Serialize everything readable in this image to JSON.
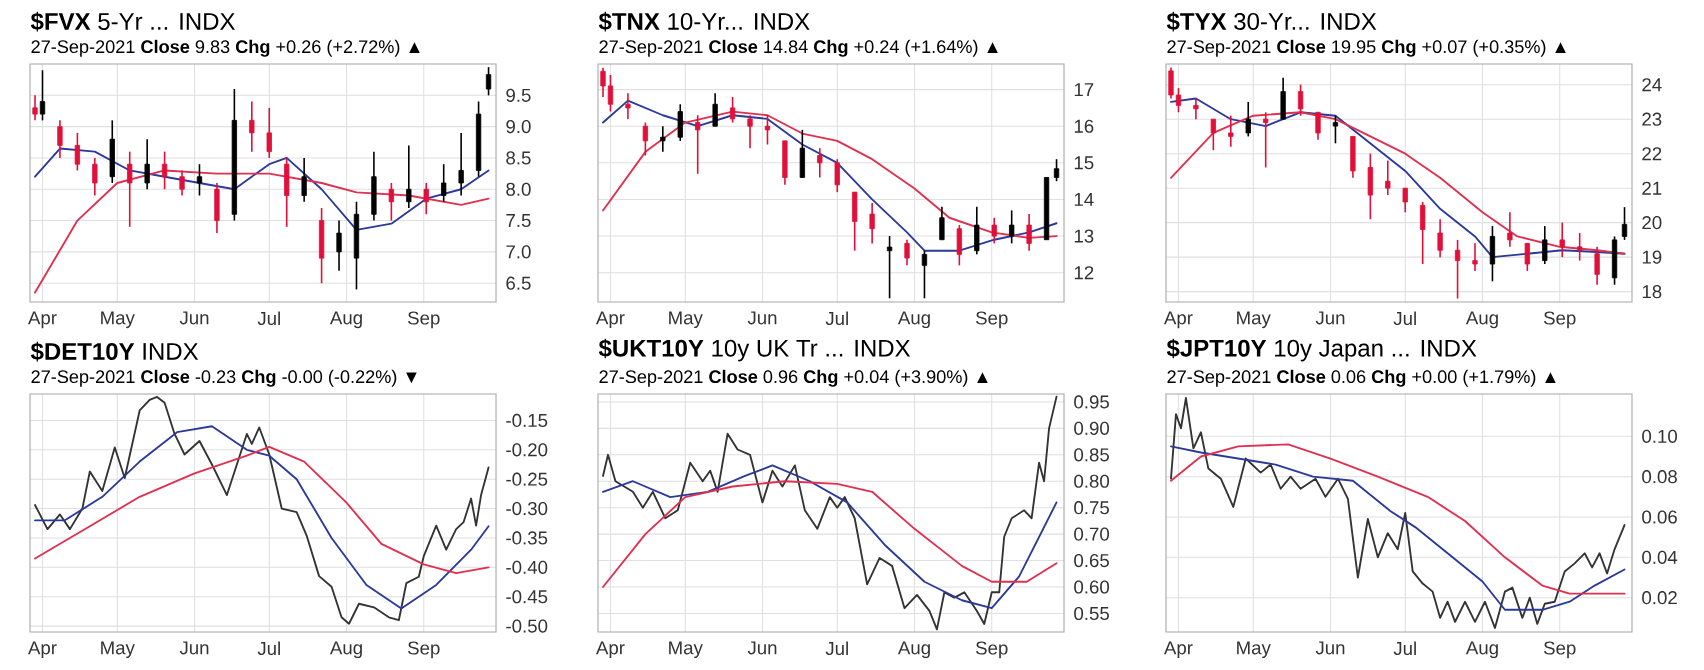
{
  "chart_data": [
    {
      "type": "candlestick",
      "title": "**$FVX** 5-Yr ... INDX",
      "subtitle": "27-Sep-2021 **Close** 9.83 **Chg** +0.26 (+2.72%) ▲",
      "grid": true,
      "xlim": [
        "2021-03-27",
        "2021-09-30"
      ],
      "ylim": [
        6.2,
        10.0
      ],
      "xticks": [
        {
          "value": "2021-04-01",
          "label": "Apr"
        },
        {
          "value": "2021-05-01",
          "label": "May"
        },
        {
          "value": "2021-06-01",
          "label": "Jun"
        },
        {
          "value": "2021-07-01",
          "label": "Jul"
        },
        {
          "value": "2021-08-01",
          "label": "Aug"
        },
        {
          "value": "2021-09-01",
          "label": "Sep"
        }
      ],
      "yticks": [
        6.5,
        {
          "value": 7,
          "label": "7.0"
        },
        7.5,
        {
          "value": 8,
          "label": "8.0"
        },
        8.5,
        {
          "value": 9,
          "label": "9.0"
        },
        9.5
      ],
      "x": [
        "2021-03-29",
        "2021-04-01",
        "2021-04-08",
        "2021-04-15",
        "2021-04-22",
        "2021-04-29",
        "2021-05-06",
        "2021-05-13",
        "2021-05-20",
        "2021-05-27",
        "2021-06-03",
        "2021-06-10",
        "2021-06-17",
        "2021-06-24",
        "2021-07-01",
        "2021-07-08",
        "2021-07-15",
        "2021-07-22",
        "2021-07-29",
        "2021-08-05",
        "2021-08-12",
        "2021-08-19",
        "2021-08-26",
        "2021-09-02",
        "2021-09-09",
        "2021-09-16",
        "2021-09-23",
        "2021-09-27"
      ],
      "ohlc": [
        [
          9.3,
          9.5,
          9.1,
          9.2
        ],
        [
          9.2,
          9.9,
          9.1,
          9.4
        ],
        [
          9.0,
          9.1,
          8.5,
          8.7
        ],
        [
          8.7,
          8.9,
          8.3,
          8.4
        ],
        [
          8.4,
          8.5,
          7.9,
          8.1
        ],
        [
          8.2,
          9.1,
          8.1,
          8.8
        ],
        [
          8.4,
          8.6,
          7.4,
          8.1
        ],
        [
          8.1,
          8.8,
          8.0,
          8.4
        ],
        [
          8.4,
          8.6,
          8.0,
          8.2
        ],
        [
          8.2,
          8.3,
          7.9,
          8.0
        ],
        [
          8.1,
          8.4,
          7.9,
          8.2
        ],
        [
          8.0,
          8.1,
          7.3,
          7.5
        ],
        [
          7.6,
          9.6,
          7.5,
          9.1
        ],
        [
          9.1,
          9.4,
          8.6,
          8.9
        ],
        [
          8.9,
          9.3,
          8.5,
          8.6
        ],
        [
          8.4,
          8.5,
          7.4,
          7.9
        ],
        [
          7.9,
          8.5,
          7.8,
          8.2
        ],
        [
          7.5,
          7.7,
          6.5,
          6.9
        ],
        [
          7.0,
          7.5,
          6.7,
          7.3
        ],
        [
          6.9,
          7.8,
          6.4,
          7.6
        ],
        [
          7.6,
          8.6,
          7.5,
          8.2
        ],
        [
          8.0,
          8.1,
          7.5,
          7.8
        ],
        [
          7.8,
          8.7,
          7.7,
          8.0
        ],
        [
          8.0,
          8.1,
          7.6,
          7.8
        ],
        [
          7.9,
          8.4,
          7.8,
          8.1
        ],
        [
          8.1,
          8.9,
          7.9,
          8.3
        ],
        [
          8.3,
          9.4,
          8.2,
          9.2
        ],
        [
          9.6,
          9.95,
          9.5,
          9.83
        ]
      ],
      "colors": [
        "#e0103a",
        "#000000",
        "#e0103a",
        "#e0103a",
        "#e0103a",
        "#000000",
        "#e0103a",
        "#000000",
        "#e0103a",
        "#e0103a",
        "#000000",
        "#e0103a",
        "#000000",
        "#e0103a",
        "#e0103a",
        "#e0103a",
        "#000000",
        "#e0103a",
        "#000000",
        "#000000",
        "#000000",
        "#e0103a",
        "#000000",
        "#e0103a",
        "#000000",
        "#000000",
        "#000000",
        "#000000"
      ],
      "series": [
        {
          "type": "line",
          "color": "#2b3a9a",
          "x": [
            "2021-03-29",
            "2021-04-08",
            "2021-04-22",
            "2021-05-06",
            "2021-05-20",
            "2021-06-03",
            "2021-06-17",
            "2021-07-01",
            "2021-07-08",
            "2021-07-22",
            "2021-08-05",
            "2021-08-19",
            "2021-09-02",
            "2021-09-16",
            "2021-09-27"
          ],
          "values": [
            8.2,
            8.65,
            8.6,
            8.3,
            8.2,
            8.1,
            8.0,
            8.4,
            8.5,
            8.0,
            7.35,
            7.45,
            7.85,
            8.0,
            8.3
          ]
        },
        {
          "type": "line",
          "color": "#e0304f",
          "x": [
            "2021-03-29",
            "2021-04-15",
            "2021-05-01",
            "2021-05-20",
            "2021-06-10",
            "2021-07-01",
            "2021-07-22",
            "2021-08-05",
            "2021-08-26",
            "2021-09-16",
            "2021-09-27"
          ],
          "values": [
            6.35,
            7.5,
            8.1,
            8.3,
            8.25,
            8.25,
            8.1,
            7.95,
            7.9,
            7.75,
            7.85
          ]
        }
      ]
    },
    {
      "type": "candlestick",
      "title": "**$TNX** 10-Yr... INDX",
      "subtitle": "27-Sep-2021 **Close** 14.84 **Chg** +0.24 (+1.64%) ▲",
      "grid": true,
      "xlim": [
        "2021-03-27",
        "2021-09-30"
      ],
      "ylim": [
        11.2,
        17.7
      ],
      "xticks": [
        {
          "value": "2021-04-01",
          "label": "Apr"
        },
        {
          "value": "2021-05-01",
          "label": "May"
        },
        {
          "value": "2021-06-01",
          "label": "Jun"
        },
        {
          "value": "2021-07-01",
          "label": "Jul"
        },
        {
          "value": "2021-08-01",
          "label": "Aug"
        },
        {
          "value": "2021-09-01",
          "label": "Sep"
        }
      ],
      "yticks": [
        12,
        13,
        14,
        15,
        16,
        17
      ],
      "x": [
        "2021-03-29",
        "2021-04-01",
        "2021-04-08",
        "2021-04-15",
        "2021-04-22",
        "2021-04-29",
        "2021-05-06",
        "2021-05-13",
        "2021-05-20",
        "2021-05-27",
        "2021-06-03",
        "2021-06-10",
        "2021-06-17",
        "2021-06-24",
        "2021-07-01",
        "2021-07-08",
        "2021-07-15",
        "2021-07-22",
        "2021-07-29",
        "2021-08-05",
        "2021-08-12",
        "2021-08-19",
        "2021-08-26",
        "2021-09-02",
        "2021-09-09",
        "2021-09-16",
        "2021-09-23",
        "2021-09-27"
      ],
      "ohlc": [
        [
          17.5,
          17.6,
          16.8,
          17.1
        ],
        [
          17.1,
          17.4,
          16.4,
          16.6
        ],
        [
          16.6,
          16.9,
          16.2,
          16.5
        ],
        [
          16.0,
          16.1,
          15.2,
          15.6
        ],
        [
          15.6,
          16.0,
          15.3,
          15.7
        ],
        [
          15.7,
          16.6,
          15.6,
          16.4
        ],
        [
          16.1,
          16.3,
          14.7,
          15.9
        ],
        [
          16.0,
          16.9,
          16.0,
          16.6
        ],
        [
          16.5,
          16.8,
          16.1,
          16.2
        ],
        [
          16.2,
          16.3,
          15.4,
          16.0
        ],
        [
          16.0,
          16.3,
          15.5,
          15.9
        ],
        [
          15.6,
          15.6,
          14.4,
          14.6
        ],
        [
          14.6,
          15.9,
          14.6,
          15.4
        ],
        [
          15.2,
          15.4,
          14.6,
          15.0
        ],
        [
          15.0,
          15.1,
          14.2,
          14.4
        ],
        [
          14.2,
          14.2,
          12.6,
          13.4
        ],
        [
          13.6,
          13.9,
          12.8,
          13.2
        ],
        [
          12.6,
          13.0,
          11.3,
          12.7
        ],
        [
          12.8,
          12.9,
          12.2,
          12.4
        ],
        [
          12.2,
          12.6,
          11.3,
          12.5
        ],
        [
          12.9,
          13.8,
          12.9,
          13.5
        ],
        [
          13.2,
          13.3,
          12.2,
          12.5
        ],
        [
          12.6,
          13.8,
          12.5,
          13.3
        ],
        [
          13.3,
          13.5,
          12.8,
          13.0
        ],
        [
          13.0,
          13.7,
          12.8,
          13.3
        ],
        [
          13.3,
          13.6,
          12.6,
          12.8
        ],
        [
          12.9,
          14.6,
          12.9,
          14.6
        ],
        [
          14.6,
          15.1,
          14.5,
          14.84
        ]
      ],
      "colors": [
        "#e0103a",
        "#e0103a",
        "#e0103a",
        "#e0103a",
        "#000000",
        "#000000",
        "#e0103a",
        "#000000",
        "#e0103a",
        "#e0103a",
        "#e0103a",
        "#e0103a",
        "#000000",
        "#e0103a",
        "#e0103a",
        "#e0103a",
        "#e0103a",
        "#000000",
        "#e0103a",
        "#000000",
        "#000000",
        "#e0103a",
        "#000000",
        "#e0103a",
        "#000000",
        "#e0103a",
        "#000000",
        "#000000"
      ],
      "series": [
        {
          "type": "line",
          "color": "#2b3a9a",
          "x": [
            "2021-03-29",
            "2021-04-08",
            "2021-04-22",
            "2021-05-06",
            "2021-05-20",
            "2021-06-03",
            "2021-06-17",
            "2021-07-01",
            "2021-07-15",
            "2021-07-29",
            "2021-08-05",
            "2021-08-19",
            "2021-09-02",
            "2021-09-16",
            "2021-09-27"
          ],
          "values": [
            16.1,
            16.7,
            16.3,
            16.0,
            16.3,
            16.2,
            15.5,
            15.0,
            14.0,
            13.1,
            12.6,
            12.6,
            12.9,
            13.1,
            13.35
          ]
        },
        {
          "type": "line",
          "color": "#e0304f",
          "x": [
            "2021-03-29",
            "2021-04-15",
            "2021-05-01",
            "2021-05-20",
            "2021-06-03",
            "2021-06-17",
            "2021-07-01",
            "2021-07-15",
            "2021-08-01",
            "2021-08-15",
            "2021-09-01",
            "2021-09-16",
            "2021-09-27"
          ],
          "values": [
            13.7,
            15.3,
            16.1,
            16.4,
            16.3,
            15.8,
            15.6,
            15.1,
            14.3,
            13.5,
            13.1,
            12.95,
            13.0
          ]
        }
      ]
    },
    {
      "type": "candlestick",
      "title": "**$TYX** 30-Yr... INDX",
      "subtitle": "27-Sep-2021 **Close** 19.95 **Chg** +0.07 (+0.35%) ▲",
      "grid": true,
      "xlim": [
        "2021-03-27",
        "2021-09-30"
      ],
      "ylim": [
        17.7,
        24.6
      ],
      "xticks": [
        {
          "value": "2021-04-01",
          "label": "Apr"
        },
        {
          "value": "2021-05-01",
          "label": "May"
        },
        {
          "value": "2021-06-01",
          "label": "Jun"
        },
        {
          "value": "2021-07-01",
          "label": "Jul"
        },
        {
          "value": "2021-08-01",
          "label": "Aug"
        },
        {
          "value": "2021-09-01",
          "label": "Sep"
        }
      ],
      "yticks": [
        18,
        19,
        20,
        21,
        22,
        23,
        24
      ],
      "x": [
        "2021-03-29",
        "2021-04-01",
        "2021-04-08",
        "2021-04-15",
        "2021-04-22",
        "2021-04-29",
        "2021-05-06",
        "2021-05-13",
        "2021-05-20",
        "2021-05-27",
        "2021-06-03",
        "2021-06-10",
        "2021-06-17",
        "2021-06-24",
        "2021-07-01",
        "2021-07-08",
        "2021-07-15",
        "2021-07-22",
        "2021-07-29",
        "2021-08-05",
        "2021-08-12",
        "2021-08-19",
        "2021-08-26",
        "2021-09-02",
        "2021-09-09",
        "2021-09-16",
        "2021-09-23",
        "2021-09-27"
      ],
      "ohlc": [
        [
          24.4,
          24.5,
          23.6,
          23.7
        ],
        [
          23.7,
          23.9,
          23.2,
          23.4
        ],
        [
          23.4,
          23.6,
          23.0,
          23.3
        ],
        [
          23.0,
          23.0,
          22.1,
          22.6
        ],
        [
          22.6,
          23.1,
          22.2,
          22.5
        ],
        [
          22.6,
          23.5,
          22.5,
          23.0
        ],
        [
          23.0,
          23.2,
          21.6,
          22.9
        ],
        [
          23.0,
          24.2,
          23.0,
          23.8
        ],
        [
          23.8,
          24.0,
          23.1,
          23.3
        ],
        [
          23.2,
          23.2,
          22.4,
          22.6
        ],
        [
          22.8,
          23.1,
          22.3,
          22.9
        ],
        [
          22.5,
          22.5,
          21.3,
          21.5
        ],
        [
          21.6,
          22.0,
          20.1,
          20.8
        ],
        [
          21.2,
          21.8,
          20.8,
          21.0
        ],
        [
          21.0,
          21.0,
          20.3,
          20.6
        ],
        [
          20.5,
          20.6,
          18.8,
          19.8
        ],
        [
          19.7,
          20.1,
          19.0,
          19.2
        ],
        [
          19.2,
          19.5,
          17.8,
          18.9
        ],
        [
          18.9,
          19.4,
          18.6,
          18.8
        ],
        [
          18.8,
          19.9,
          18.3,
          19.6
        ],
        [
          19.7,
          20.3,
          19.3,
          19.5
        ],
        [
          19.4,
          19.4,
          18.6,
          18.8
        ],
        [
          18.9,
          19.9,
          18.8,
          19.5
        ],
        [
          19.5,
          20.0,
          19.0,
          19.3
        ],
        [
          19.3,
          19.7,
          18.9,
          19.2
        ],
        [
          19.1,
          19.3,
          18.2,
          18.5
        ],
        [
          18.4,
          19.6,
          18.2,
          19.5
        ],
        [
          19.6,
          20.45,
          19.5,
          19.95
        ]
      ],
      "colors": [
        "#e0103a",
        "#e0103a",
        "#e0103a",
        "#e0103a",
        "#e0103a",
        "#000000",
        "#e0103a",
        "#000000",
        "#e0103a",
        "#e0103a",
        "#000000",
        "#e0103a",
        "#e0103a",
        "#e0103a",
        "#e0103a",
        "#e0103a",
        "#e0103a",
        "#e0103a",
        "#e0103a",
        "#000000",
        "#e0103a",
        "#e0103a",
        "#000000",
        "#e0103a",
        "#e0103a",
        "#e0103a",
        "#000000",
        "#000000"
      ],
      "series": [
        {
          "type": "line",
          "color": "#2b3a9a",
          "x": [
            "2021-03-29",
            "2021-04-08",
            "2021-04-22",
            "2021-05-06",
            "2021-05-20",
            "2021-06-03",
            "2021-06-17",
            "2021-07-01",
            "2021-07-15",
            "2021-07-29",
            "2021-08-05",
            "2021-08-19",
            "2021-09-02",
            "2021-09-16",
            "2021-09-27"
          ],
          "values": [
            23.5,
            23.6,
            23.0,
            22.8,
            23.2,
            23.1,
            22.3,
            21.5,
            20.4,
            19.6,
            19.0,
            19.1,
            19.2,
            19.15,
            19.1
          ]
        },
        {
          "type": "line",
          "color": "#e0304f",
          "x": [
            "2021-03-29",
            "2021-04-15",
            "2021-05-01",
            "2021-05-20",
            "2021-06-03",
            "2021-06-17",
            "2021-07-01",
            "2021-07-15",
            "2021-08-01",
            "2021-08-15",
            "2021-09-01",
            "2021-09-16",
            "2021-09-27"
          ],
          "values": [
            21.3,
            22.6,
            23.1,
            23.2,
            23.0,
            22.5,
            22.0,
            21.3,
            20.3,
            19.6,
            19.3,
            19.2,
            19.1
          ]
        }
      ]
    },
    {
      "type": "line",
      "title": "**$DET10Y** INDX",
      "subtitle": "27-Sep-2021 **Close** -0.23 **Chg** -0.00 (-0.22%) ▼",
      "grid": true,
      "xlim": [
        "2021-03-27",
        "2021-09-30"
      ],
      "ylim": [
        -0.51,
        -0.105
      ],
      "xticks": [
        {
          "value": "2021-04-01",
          "label": "Apr"
        },
        {
          "value": "2021-05-01",
          "label": "May"
        },
        {
          "value": "2021-06-01",
          "label": "Jun"
        },
        {
          "value": "2021-07-01",
          "label": "Jul"
        },
        {
          "value": "2021-08-01",
          "label": "Aug"
        },
        {
          "value": "2021-09-01",
          "label": "Sep"
        }
      ],
      "yticks": [
        {
          "value": -0.5,
          "label": "-0.50"
        },
        -0.45,
        {
          "value": -0.4,
          "label": "-0.40"
        },
        -0.35,
        {
          "value": -0.3,
          "label": "-0.30"
        },
        -0.25,
        {
          "value": -0.2,
          "label": "-0.20"
        },
        -0.15
      ],
      "series": [
        {
          "type": "line",
          "color": "#333333",
          "x": [
            "2021-03-29",
            "2021-04-03",
            "2021-04-08",
            "2021-04-12",
            "2021-04-17",
            "2021-04-20",
            "2021-04-25",
            "2021-04-30",
            "2021-05-04",
            "2021-05-10",
            "2021-05-14",
            "2021-05-17",
            "2021-05-20",
            "2021-05-24",
            "2021-05-28",
            "2021-06-03",
            "2021-06-08",
            "2021-06-14",
            "2021-06-18",
            "2021-06-22",
            "2021-06-24",
            "2021-06-27",
            "2021-07-01",
            "2021-07-06",
            "2021-07-12",
            "2021-07-16",
            "2021-07-21",
            "2021-07-26",
            "2021-07-30",
            "2021-08-02",
            "2021-08-06",
            "2021-08-12",
            "2021-08-18",
            "2021-08-22",
            "2021-08-25",
            "2021-08-30",
            "2021-09-01",
            "2021-09-06",
            "2021-09-10",
            "2021-09-14",
            "2021-09-17",
            "2021-09-20",
            "2021-09-22",
            "2021-09-24",
            "2021-09-27"
          ],
          "values": [
            -0.294,
            -0.335,
            -0.31,
            -0.335,
            -0.3,
            -0.237,
            -0.27,
            -0.196,
            -0.248,
            -0.133,
            -0.115,
            -0.11,
            -0.12,
            -0.173,
            -0.208,
            -0.185,
            -0.225,
            -0.277,
            -0.225,
            -0.173,
            -0.19,
            -0.162,
            -0.208,
            -0.3,
            -0.306,
            -0.346,
            -0.415,
            -0.433,
            -0.485,
            -0.496,
            -0.462,
            -0.468,
            -0.485,
            -0.49,
            -0.427,
            -0.416,
            -0.381,
            -0.329,
            -0.37,
            -0.335,
            -0.323,
            -0.283,
            -0.329,
            -0.277,
            -0.23
          ]
        },
        {
          "type": "line",
          "color": "#2b3a9a",
          "x": [
            "2021-03-29",
            "2021-04-10",
            "2021-04-25",
            "2021-05-10",
            "2021-05-25",
            "2021-06-08",
            "2021-06-22",
            "2021-07-01",
            "2021-07-12",
            "2021-07-26",
            "2021-08-09",
            "2021-08-23",
            "2021-09-06",
            "2021-09-20",
            "2021-09-27"
          ],
          "values": [
            -0.32,
            -0.32,
            -0.28,
            -0.22,
            -0.17,
            -0.16,
            -0.2,
            -0.21,
            -0.25,
            -0.35,
            -0.43,
            -0.47,
            -0.43,
            -0.37,
            -0.33
          ]
        },
        {
          "type": "line",
          "color": "#e0304f",
          "x": [
            "2021-03-29",
            "2021-04-20",
            "2021-05-10",
            "2021-06-01",
            "2021-06-22",
            "2021-07-01",
            "2021-07-15",
            "2021-08-01",
            "2021-08-15",
            "2021-09-01",
            "2021-09-14",
            "2021-09-27"
          ],
          "values": [
            -0.385,
            -0.33,
            -0.28,
            -0.24,
            -0.21,
            -0.195,
            -0.22,
            -0.29,
            -0.36,
            -0.395,
            -0.41,
            -0.4
          ]
        }
      ]
    },
    {
      "type": "line",
      "title": "**$UKT10Y** 10y UK Tr ... INDX",
      "subtitle": "27-Sep-2021 **Close** 0.96 **Chg** +0.04 (+3.90%) ▲",
      "grid": true,
      "xlim": [
        "2021-03-27",
        "2021-09-30"
      ],
      "ylim": [
        0.515,
        0.965
      ],
      "xticks": [
        {
          "value": "2021-04-01",
          "label": "Apr"
        },
        {
          "value": "2021-05-01",
          "label": "May"
        },
        {
          "value": "2021-06-01",
          "label": "Jun"
        },
        {
          "value": "2021-07-01",
          "label": "Jul"
        },
        {
          "value": "2021-08-01",
          "label": "Aug"
        },
        {
          "value": "2021-09-01",
          "label": "Sep"
        }
      ],
      "yticks": [
        0.55,
        {
          "value": 0.6,
          "label": "0.60"
        },
        0.65,
        {
          "value": 0.7,
          "label": "0.70"
        },
        0.75,
        {
          "value": 0.8,
          "label": "0.80"
        },
        0.85,
        {
          "value": 0.9,
          "label": "0.90"
        },
        0.95
      ],
      "series": [
        {
          "type": "line",
          "color": "#333333",
          "x": [
            "2021-03-29",
            "2021-03-31",
            "2021-04-03",
            "2021-04-10",
            "2021-04-14",
            "2021-04-18",
            "2021-04-23",
            "2021-04-28",
            "2021-05-03",
            "2021-05-08",
            "2021-05-11",
            "2021-05-14",
            "2021-05-18",
            "2021-05-22",
            "2021-05-27",
            "2021-06-01",
            "2021-06-05",
            "2021-06-09",
            "2021-06-14",
            "2021-06-18",
            "2021-06-23",
            "2021-06-28",
            "2021-07-01",
            "2021-07-04",
            "2021-07-08",
            "2021-07-13",
            "2021-07-18",
            "2021-07-23",
            "2021-07-28",
            "2021-08-02",
            "2021-08-07",
            "2021-08-10",
            "2021-08-13",
            "2021-08-17",
            "2021-08-21",
            "2021-08-26",
            "2021-08-29",
            "2021-09-01",
            "2021-09-04",
            "2021-09-06",
            "2021-09-09",
            "2021-09-14",
            "2021-09-17",
            "2021-09-20",
            "2021-09-22",
            "2021-09-24",
            "2021-09-27"
          ],
          "values": [
            0.81,
            0.85,
            0.8,
            0.78,
            0.75,
            0.78,
            0.73,
            0.745,
            0.835,
            0.8,
            0.82,
            0.78,
            0.89,
            0.86,
            0.85,
            0.76,
            0.82,
            0.79,
            0.83,
            0.745,
            0.71,
            0.77,
            0.75,
            0.77,
            0.73,
            0.605,
            0.655,
            0.64,
            0.56,
            0.585,
            0.555,
            0.52,
            0.59,
            0.58,
            0.59,
            0.555,
            0.53,
            0.59,
            0.59,
            0.695,
            0.73,
            0.745,
            0.73,
            0.835,
            0.8,
            0.9,
            0.96
          ]
        },
        {
          "type": "line",
          "color": "#2b3a9a",
          "x": [
            "2021-03-29",
            "2021-04-10",
            "2021-04-25",
            "2021-05-10",
            "2021-05-25",
            "2021-06-05",
            "2021-06-20",
            "2021-07-05",
            "2021-07-20",
            "2021-08-05",
            "2021-08-20",
            "2021-09-01",
            "2021-09-12",
            "2021-09-27"
          ],
          "values": [
            0.78,
            0.8,
            0.77,
            0.78,
            0.81,
            0.83,
            0.8,
            0.76,
            0.68,
            0.61,
            0.575,
            0.56,
            0.62,
            0.76
          ]
        },
        {
          "type": "line",
          "color": "#e0304f",
          "x": [
            "2021-03-29",
            "2021-04-15",
            "2021-05-01",
            "2021-05-20",
            "2021-06-10",
            "2021-07-01",
            "2021-07-15",
            "2021-08-01",
            "2021-08-20",
            "2021-09-01",
            "2021-09-15",
            "2021-09-27"
          ],
          "values": [
            0.6,
            0.7,
            0.77,
            0.79,
            0.8,
            0.795,
            0.78,
            0.71,
            0.64,
            0.61,
            0.61,
            0.645
          ]
        }
      ]
    },
    {
      "type": "line",
      "title": "**$JPT10Y** 10y Japan ... INDX",
      "subtitle": "27-Sep-2021 **Close** 0.06 **Chg** +0.00 (+1.79%) ▲",
      "grid": true,
      "xlim": [
        "2021-03-27",
        "2021-09-30"
      ],
      "ylim": [
        0.003,
        0.121
      ],
      "xticks": [
        {
          "value": "2021-04-01",
          "label": "Apr"
        },
        {
          "value": "2021-05-01",
          "label": "May"
        },
        {
          "value": "2021-06-01",
          "label": "Jun"
        },
        {
          "value": "2021-07-01",
          "label": "Jul"
        },
        {
          "value": "2021-08-01",
          "label": "Aug"
        },
        {
          "value": "2021-09-01",
          "label": "Sep"
        }
      ],
      "yticks": [
        0.02,
        0.04,
        0.06,
        0.08,
        {
          "value": 0.1,
          "label": "0.10"
        }
      ],
      "series": [
        {
          "type": "line",
          "color": "#333333",
          "x": [
            "2021-03-29",
            "2021-03-31",
            "2021-04-02",
            "2021-04-04",
            "2021-04-07",
            "2021-04-10",
            "2021-04-13",
            "2021-04-18",
            "2021-04-23",
            "2021-04-28",
            "2021-05-04",
            "2021-05-08",
            "2021-05-12",
            "2021-05-16",
            "2021-05-20",
            "2021-05-26",
            "2021-05-30",
            "2021-06-04",
            "2021-06-08",
            "2021-06-12",
            "2021-06-16",
            "2021-06-20",
            "2021-06-24",
            "2021-06-28",
            "2021-07-01",
            "2021-07-04",
            "2021-07-08",
            "2021-07-12",
            "2021-07-15",
            "2021-07-18",
            "2021-07-21",
            "2021-07-25",
            "2021-07-29",
            "2021-08-02",
            "2021-08-06",
            "2021-08-10",
            "2021-08-13",
            "2021-08-17",
            "2021-08-20",
            "2021-08-23",
            "2021-08-26",
            "2021-08-30",
            "2021-09-03",
            "2021-09-07",
            "2021-09-11",
            "2021-09-14",
            "2021-09-17",
            "2021-09-20",
            "2021-09-23",
            "2021-09-27"
          ],
          "values": [
            0.079,
            0.111,
            0.104,
            0.119,
            0.094,
            0.102,
            0.084,
            0.079,
            0.065,
            0.089,
            0.082,
            0.086,
            0.074,
            0.08,
            0.074,
            0.079,
            0.07,
            0.079,
            0.069,
            0.03,
            0.059,
            0.04,
            0.052,
            0.044,
            0.062,
            0.033,
            0.027,
            0.023,
            0.01,
            0.018,
            0.008,
            0.018,
            0.008,
            0.018,
            0.005,
            0.023,
            0.025,
            0.01,
            0.02,
            0.007,
            0.017,
            0.018,
            0.033,
            0.037,
            0.042,
            0.035,
            0.042,
            0.032,
            0.044,
            0.056
          ]
        },
        {
          "type": "line",
          "color": "#2b3a9a",
          "x": [
            "2021-03-29",
            "2021-04-10",
            "2021-04-25",
            "2021-05-10",
            "2021-05-25",
            "2021-06-10",
            "2021-06-25",
            "2021-07-05",
            "2021-07-20",
            "2021-08-01",
            "2021-08-10",
            "2021-08-25",
            "2021-09-05",
            "2021-09-15",
            "2021-09-27"
          ],
          "values": [
            0.095,
            0.092,
            0.089,
            0.086,
            0.08,
            0.078,
            0.063,
            0.055,
            0.04,
            0.028,
            0.014,
            0.014,
            0.018,
            0.026,
            0.034
          ]
        },
        {
          "type": "line",
          "color": "#e0304f",
          "x": [
            "2021-03-29",
            "2021-04-10",
            "2021-04-25",
            "2021-05-15",
            "2021-06-01",
            "2021-06-20",
            "2021-07-10",
            "2021-07-25",
            "2021-08-10",
            "2021-08-25",
            "2021-09-05",
            "2021-09-27"
          ],
          "values": [
            0.078,
            0.09,
            0.095,
            0.096,
            0.089,
            0.08,
            0.07,
            0.058,
            0.04,
            0.026,
            0.022,
            0.022
          ]
        }
      ]
    }
  ]
}
